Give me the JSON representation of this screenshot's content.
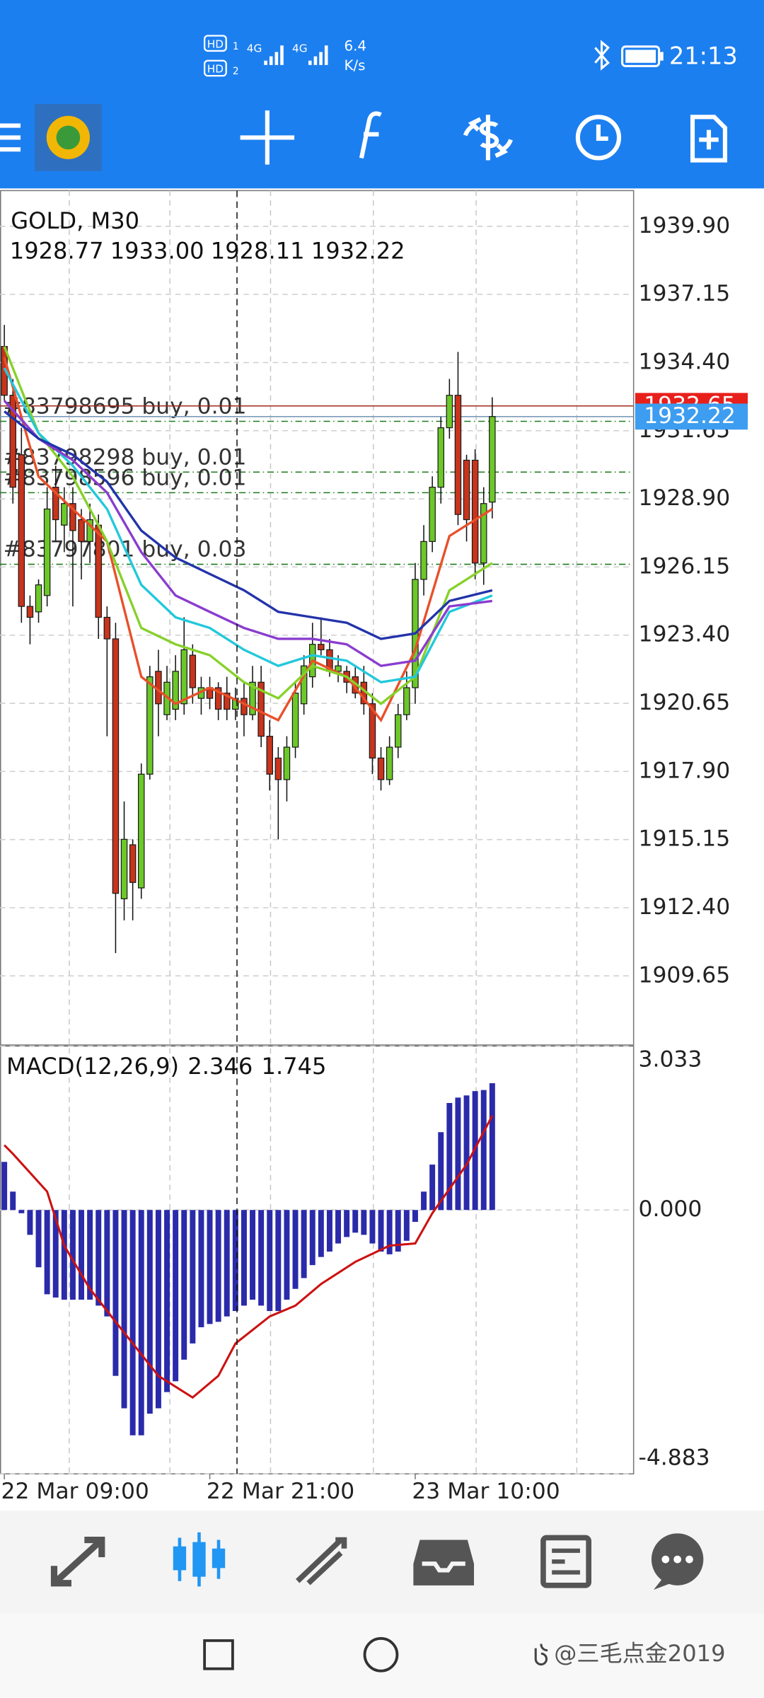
{
  "status_bar": {
    "sim_labels": [
      "HD",
      "HD"
    ],
    "sim_numbers": [
      "1",
      "2"
    ],
    "network": [
      "4G",
      "4G"
    ],
    "speed": "6.4",
    "speed_unit": "K/s",
    "time": "21:13"
  },
  "watermark": "@三毛点金2019",
  "chart_data": [
    {
      "type": "candlestick",
      "title": "GOLD, M30",
      "last_bar_labels": [
        "1928.77",
        "1933.00",
        "1928.11",
        "1932.22"
      ],
      "open": [
        1935.05,
        1933.08,
        1930.68,
        1924.56,
        1924.34,
        1925.0,
        1929.37,
        1927.84,
        1928.71,
        1928.06,
        1927.18,
        1927.84,
        1924.12,
        1923.25,
        1912.76,
        1914.94,
        1913.2,
        1917.79,
        1921.94,
        1920.19,
        1920.41,
        1920.63,
        1922.59,
        1920.85,
        1921.28,
        1921.28,
        1921.06,
        1920.41,
        1920.85,
        1920.19,
        1921.5,
        1919.32,
        1918.44,
        1917.57,
        1918.88,
        1920.63,
        1921.72,
        1923.03,
        1922.81,
        1921.94,
        1921.94,
        1921.72,
        1921.5,
        1920.63,
        1918.44,
        1917.57,
        1918.88,
        1920.19,
        1921.28,
        1925.65,
        1927.18,
        1929.37,
        1931.77,
        1933.08,
        1930.46,
        1930.46,
        1926.31,
        1928.77
      ],
      "high": [
        1935.92,
        1933.74,
        1931.77,
        1925.0,
        1925.65,
        1929.37,
        1930.24,
        1929.37,
        1929.37,
        1928.49,
        1928.71,
        1928.27,
        1924.56,
        1923.9,
        1916.69,
        1915.16,
        1918.22,
        1922.16,
        1922.81,
        1922.16,
        1922.59,
        1924.12,
        1923.03,
        1921.72,
        1921.72,
        1921.5,
        1921.72,
        1921.28,
        1921.5,
        1922.16,
        1922.16,
        1919.97,
        1918.88,
        1919.32,
        1921.5,
        1922.59,
        1923.9,
        1924.12,
        1923.25,
        1922.59,
        1922.16,
        1922.16,
        1922.16,
        1921.06,
        1918.88,
        1919.32,
        1920.63,
        1921.94,
        1926.31,
        1927.84,
        1929.81,
        1932.21,
        1933.74,
        1934.83,
        1930.68,
        1930.9,
        1929.37,
        1933.0
      ],
      "low": [
        1932.86,
        1928.71,
        1923.9,
        1923.03,
        1923.9,
        1924.56,
        1927.18,
        1926.75,
        1924.56,
        1925.65,
        1926.31,
        1923.25,
        1919.32,
        1910.57,
        1911.89,
        1911.89,
        1912.76,
        1917.57,
        1919.32,
        1919.97,
        1919.97,
        1920.19,
        1920.63,
        1920.19,
        1920.41,
        1919.97,
        1919.97,
        1919.97,
        1919.32,
        1919.97,
        1918.88,
        1917.13,
        1915.16,
        1916.69,
        1918.44,
        1920.19,
        1921.28,
        1922.59,
        1921.72,
        1921.5,
        1921.06,
        1920.85,
        1920.19,
        1917.79,
        1917.13,
        1917.35,
        1918.44,
        1919.97,
        1920.63,
        1925.0,
        1926.75,
        1928.71,
        1931.33,
        1927.84,
        1927.18,
        1925.65,
        1925.43,
        1928.11
      ],
      "close": [
        1933.08,
        1929.37,
        1924.56,
        1924.12,
        1925.43,
        1928.49,
        1928.06,
        1928.71,
        1927.62,
        1927.18,
        1928.06,
        1924.12,
        1923.25,
        1912.98,
        1915.16,
        1913.42,
        1917.79,
        1921.72,
        1920.63,
        1921.5,
        1921.94,
        1922.81,
        1921.28,
        1921.28,
        1920.85,
        1920.41,
        1920.41,
        1920.85,
        1920.19,
        1921.5,
        1919.32,
        1917.79,
        1917.57,
        1918.88,
        1921.06,
        1922.16,
        1923.03,
        1922.81,
        1921.94,
        1922.16,
        1921.5,
        1921.06,
        1920.63,
        1918.44,
        1917.57,
        1918.88,
        1920.19,
        1921.28,
        1925.65,
        1927.18,
        1929.37,
        1931.77,
        1933.08,
        1928.27,
        1928.06,
        1926.31,
        1928.71,
        1932.22
      ],
      "up_color": "#6cc829",
      "down_color": "#c8341c",
      "series": [
        {
          "color": "#e8502a",
          "x": [
            0,
            4,
            8,
            12,
            16,
            20,
            24,
            28,
            32,
            36,
            40,
            44,
            48,
            52,
            57
          ],
          "values": [
            1934.61,
            1929.8,
            1928.49,
            1927.18,
            1921.72,
            1920.63,
            1921.28,
            1920.63,
            1919.97,
            1922.37,
            1921.72,
            1919.97,
            1922.81,
            1927.4,
            1928.49
          ]
        },
        {
          "color": "#86d12a",
          "x": [
            0,
            4,
            8,
            12,
            16,
            20,
            24,
            28,
            32,
            36,
            40,
            44,
            48,
            52,
            57
          ],
          "values": [
            1935.05,
            1931.55,
            1929.8,
            1927.18,
            1923.69,
            1923.03,
            1922.59,
            1921.5,
            1920.85,
            1922.16,
            1921.72,
            1920.63,
            1921.72,
            1925.21,
            1926.31
          ]
        },
        {
          "color": "#22c8dc",
          "x": [
            0,
            4,
            8,
            12,
            16,
            20,
            24,
            28,
            32,
            36,
            40,
            44,
            48,
            52,
            57
          ],
          "values": [
            1934.18,
            1931.55,
            1930.24,
            1928.49,
            1925.43,
            1924.12,
            1923.69,
            1922.81,
            1922.16,
            1922.59,
            1922.37,
            1921.5,
            1921.72,
            1924.34,
            1925.0
          ]
        },
        {
          "color": "#8a3ccf",
          "x": [
            0,
            4,
            8,
            12,
            16,
            20,
            24,
            28,
            32,
            36,
            40,
            44,
            48,
            52,
            57
          ],
          "values": [
            1932.86,
            1931.33,
            1930.46,
            1929.15,
            1926.75,
            1925.0,
            1924.34,
            1923.69,
            1923.25,
            1923.25,
            1923.03,
            1922.16,
            1922.37,
            1924.56,
            1924.78
          ]
        },
        {
          "color": "#2233aa",
          "x": [
            0,
            4,
            8,
            12,
            16,
            20,
            24,
            28,
            32,
            36,
            40,
            44,
            48,
            52,
            57
          ],
          "values": [
            1932.43,
            1931.33,
            1930.68,
            1929.59,
            1927.62,
            1926.53,
            1925.87,
            1925.21,
            1924.34,
            1924.12,
            1923.9,
            1923.25,
            1923.47,
            1924.78,
            1925.21
          ]
        }
      ],
      "orders": [
        {
          "label": "#83798695 buy, 0.01",
          "value": 1932.03
        },
        {
          "label": "#83798298 buy, 0.01",
          "value": 1929.98
        },
        {
          "label": "#83798596 buy, 0.01",
          "value": 1929.15
        },
        {
          "label": "#83797801 buy, 0.03",
          "value": 1926.26
        }
      ],
      "order_color": "#1e7a1e",
      "ask": {
        "value": 1932.65,
        "color": "#e8201c"
      },
      "bid_color": "#3d9df0",
      "xlim": [
        -0.506,
        73.45
      ],
      "ylim": [
        1906.86,
        1941.34
      ],
      "yticks": [
        {
          "value": 1939.9,
          "label": "1939.90"
        },
        1937.15,
        {
          "value": 1934.4,
          "label": "1934.40"
        },
        1931.65,
        {
          "value": 1928.9,
          "label": "1928.90"
        },
        1926.15,
        {
          "value": 1923.4,
          "label": "1923.40"
        },
        1920.65,
        {
          "value": 1917.9,
          "label": "1917.90"
        },
        1915.15,
        {
          "value": 1912.4,
          "label": "1912.40"
        },
        1909.65
      ],
      "grid": true
    },
    {
      "type": "bar",
      "title": "MACD(12,26,9)",
      "series": [
        {
          "color": "#2a2aaa",
          "values": [
            0.89,
            0.34,
            -0.06,
            -0.46,
            -1.06,
            -1.56,
            -1.62,
            -1.66,
            -1.66,
            -1.66,
            -1.66,
            -1.77,
            -1.97,
            -3.07,
            -3.67,
            -4.17,
            -4.17,
            -3.77,
            -3.67,
            -3.37,
            -3.17,
            -2.77,
            -2.47,
            -2.17,
            -2.11,
            -2.07,
            -1.97,
            -1.87,
            -1.77,
            -1.66,
            -1.77,
            -1.87,
            -1.87,
            -1.66,
            -1.46,
            -1.26,
            -1.02,
            -0.87,
            -0.77,
            -0.62,
            -0.5,
            -0.42,
            -0.46,
            -0.62,
            -0.77,
            -0.82,
            -0.77,
            -0.57,
            -0.22,
            0.34,
            0.84,
            1.44,
            1.98,
            2.08,
            2.12,
            2.2,
            2.22,
            2.346
          ]
        },
        {
          "type": "line",
          "color": "#cc1111",
          "x": [
            0,
            1,
            5,
            7,
            10,
            13,
            18,
            22,
            25,
            27,
            31,
            34,
            37,
            41,
            45,
            48,
            50,
            54,
            57
          ],
          "values": [
            1.2,
            1.04,
            0.34,
            -0.66,
            -1.46,
            -2.07,
            -3.07,
            -3.47,
            -3.07,
            -2.47,
            -1.97,
            -1.77,
            -1.37,
            -0.96,
            -0.66,
            -0.62,
            -0.06,
            0.84,
            1.745
          ]
        }
      ],
      "ylim": [
        -4.883,
        3.033
      ],
      "yticks": [
        3.033,
        {
          "value": 0,
          "label": "0.000"
        },
        -4.883
      ],
      "xticks": [
        {
          "value": 0,
          "label": "22 Mar 09:00"
        },
        {
          "value": 24,
          "label": "22 Mar 21:00"
        },
        {
          "value": 48,
          "label": "23 Mar 10:00"
        }
      ],
      "grid": true
    }
  ]
}
